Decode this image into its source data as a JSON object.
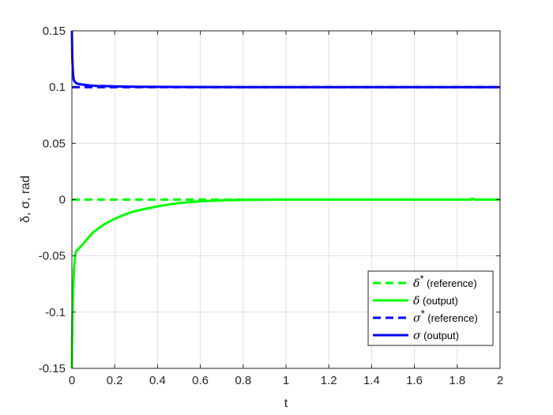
{
  "chart_data": {
    "type": "line",
    "xlabel": "t",
    "ylabel": "δ, σ, rad",
    "xlim": [
      0,
      2
    ],
    "ylim": [
      -0.15,
      0.15
    ],
    "x_ticks": [
      0,
      0.2,
      0.4,
      0.6,
      0.8,
      1,
      1.2,
      1.4,
      1.6,
      1.8,
      2
    ],
    "x_tick_labels": [
      "0",
      "0.2",
      "0.4",
      "0.6",
      "0.8",
      "1",
      "1.2",
      "1.4",
      "1.6",
      "1.8",
      "2"
    ],
    "y_ticks": [
      -0.15,
      -0.1,
      -0.05,
      0,
      0.05,
      0.1,
      0.15
    ],
    "y_tick_labels": [
      "-0.15",
      "-0.1",
      "-0.05",
      "0",
      "0.05",
      "0.1",
      "0.15"
    ],
    "grid": true,
    "legend_position": "bottom-right",
    "series": [
      {
        "name": "δ* (reference)",
        "symbol": "δ",
        "superscript": "*",
        "suffix": " (reference)",
        "color": "#00ff00",
        "dash": "dashed",
        "x": [
          0,
          2
        ],
        "y": [
          0,
          0
        ]
      },
      {
        "name": "δ (output)",
        "symbol": "δ",
        "superscript": "",
        "suffix": " (output)",
        "color": "#00ff00",
        "dash": "solid",
        "x": [
          0,
          0.001,
          0.003,
          0.006,
          0.01,
          0.015,
          0.02,
          0.03,
          0.05,
          0.08,
          0.1,
          0.15,
          0.2,
          0.25,
          0.3,
          0.4,
          0.5,
          0.6,
          0.7,
          0.8,
          1.0,
          1.2,
          1.5,
          1.86,
          1.87,
          1.88,
          2.0
        ],
        "y": [
          -0.15,
          -0.125,
          -0.1,
          -0.08,
          -0.062,
          -0.05,
          -0.046,
          -0.044,
          -0.04,
          -0.033,
          -0.029,
          -0.022,
          -0.017,
          -0.013,
          -0.01,
          -0.006,
          -0.003,
          -0.0015,
          -0.0007,
          -0.0003,
          0,
          0,
          0,
          0,
          0.001,
          0,
          0
        ]
      },
      {
        "name": "σ* (reference)",
        "symbol": "σ",
        "superscript": "*",
        "suffix": " (reference)",
        "color": "#0000ff",
        "dash": "dashed",
        "x": [
          0,
          2
        ],
        "y": [
          0.1,
          0.1
        ]
      },
      {
        "name": "σ (output)",
        "symbol": "σ",
        "superscript": "",
        "suffix": " (output)",
        "color": "#0000ff",
        "dash": "solid",
        "x": [
          0,
          0.002,
          0.005,
          0.008,
          0.012,
          0.02,
          0.03,
          0.05,
          0.08,
          0.12,
          0.2,
          0.3,
          0.5,
          0.8,
          1.2,
          2.0
        ],
        "y": [
          0.15,
          0.125,
          0.112,
          0.107,
          0.105,
          0.1035,
          0.1028,
          0.1022,
          0.1015,
          0.101,
          0.1006,
          0.1003,
          0.1001,
          0.1,
          0.1,
          0.1
        ]
      }
    ]
  }
}
